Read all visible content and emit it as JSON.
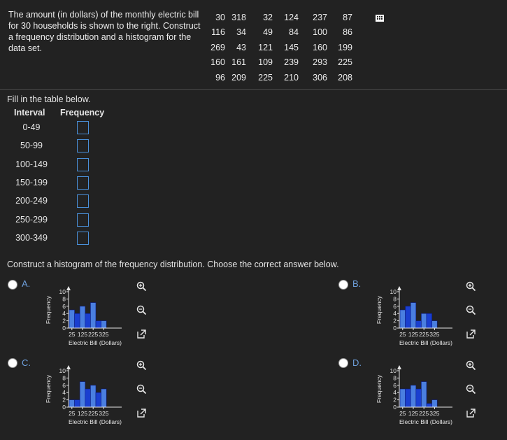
{
  "problem": {
    "text": "The amount (in dollars) of the monthly electric bill for 30 households is shown to the right. Construct a frequency distribution and a histogram for the data set."
  },
  "data_rows": [
    [
      "30",
      "318",
      "32",
      "124",
      "237",
      "87"
    ],
    [
      "116",
      "34",
      "49",
      "84",
      "100",
      "86"
    ],
    [
      "269",
      "43",
      "121",
      "145",
      "160",
      "199"
    ],
    [
      "160",
      "161",
      "109",
      "239",
      "293",
      "225"
    ],
    [
      "96",
      "209",
      "225",
      "210",
      "306",
      "208"
    ]
  ],
  "table": {
    "instruction": "Fill in the table below.",
    "header_interval": "Interval",
    "header_frequency": "Frequency",
    "intervals": [
      "0-49",
      "50-99",
      "100-149",
      "150-199",
      "200-249",
      "250-299",
      "300-349"
    ]
  },
  "histogram": {
    "instruction": "Construct a histogram of the frequency distribution. Choose the correct answer below."
  },
  "options": [
    {
      "label": "A.",
      "values": [
        5,
        4,
        6,
        4,
        7,
        2,
        2
      ]
    },
    {
      "label": "B.",
      "values": [
        5,
        6,
        7,
        2,
        4,
        4,
        2
      ]
    },
    {
      "label": "C.",
      "values": [
        2,
        2,
        7,
        5,
        6,
        4,
        5
      ]
    },
    {
      "label": "D.",
      "values": [
        5,
        5,
        6,
        5,
        7,
        1,
        2
      ]
    }
  ],
  "chart_common": {
    "ylabel": "Frequency",
    "xlabel": "Electric Bill (Dollars)",
    "xticks": [
      "25",
      "125",
      "225",
      "325"
    ],
    "yticks": [
      "0",
      "2",
      "4",
      "6",
      "8",
      "10"
    ],
    "ymax": 10
  },
  "chart_data": [
    {
      "type": "bar",
      "categories": [
        "0-49",
        "50-99",
        "100-149",
        "150-199",
        "200-249",
        "250-299",
        "300-349"
      ],
      "values": [
        5,
        4,
        6,
        4,
        7,
        2,
        2
      ],
      "xlabel": "Electric Bill (Dollars)",
      "ylabel": "Frequency",
      "ylim": [
        0,
        10
      ]
    },
    {
      "type": "bar",
      "categories": [
        "0-49",
        "50-99",
        "100-149",
        "150-199",
        "200-249",
        "250-299",
        "300-349"
      ],
      "values": [
        5,
        6,
        7,
        2,
        4,
        4,
        2
      ],
      "xlabel": "Electric Bill (Dollars)",
      "ylabel": "Frequency",
      "ylim": [
        0,
        10
      ]
    },
    {
      "type": "bar",
      "categories": [
        "0-49",
        "50-99",
        "100-149",
        "150-199",
        "200-249",
        "250-299",
        "300-349"
      ],
      "values": [
        2,
        2,
        7,
        5,
        6,
        4,
        5
      ],
      "xlabel": "Electric Bill (Dollars)",
      "ylabel": "Frequency",
      "ylim": [
        0,
        10
      ]
    },
    {
      "type": "bar",
      "categories": [
        "0-49",
        "50-99",
        "100-149",
        "150-199",
        "200-249",
        "250-299",
        "300-349"
      ],
      "values": [
        5,
        5,
        6,
        5,
        7,
        1,
        2
      ],
      "xlabel": "Electric Bill (Dollars)",
      "ylabel": "Frequency",
      "ylim": [
        0,
        10
      ]
    }
  ],
  "colors": {
    "bar_fill": "#1a3fd0",
    "bar_alt": "#4a7fe0",
    "bar_stroke": "#0a1a80",
    "link": "#6ea0dc"
  }
}
